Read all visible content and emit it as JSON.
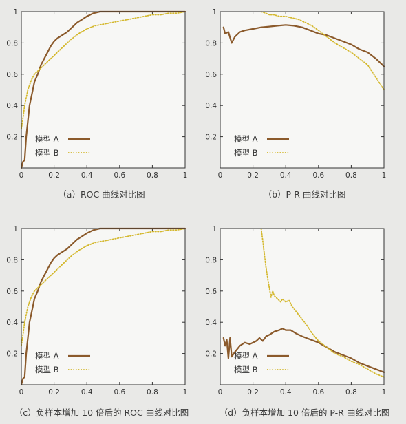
{
  "colors": {
    "model_a": "#8b5a2b",
    "model_b": "#d4b82e",
    "axis": "#333333",
    "background": "#e9e9e7",
    "plot_bg": "#f7f7f5"
  },
  "chart_data": [
    {
      "id": "a",
      "type": "line",
      "title": "（a）ROC 曲线对比图",
      "xlim": [
        0,
        1
      ],
      "ylim": [
        0,
        1
      ],
      "xticks": [
        "0",
        "0.2",
        "0.4",
        "0.6",
        "0.8",
        "1"
      ],
      "yticks": [
        "0.2",
        "0.4",
        "0.6",
        "0.8",
        "1"
      ],
      "legend_position": "bottom-left",
      "series": [
        {
          "name": "模型 A",
          "style": "solid",
          "x": [
            0,
            0.01,
            0.02,
            0.03,
            0.05,
            0.07,
            0.08,
            0.1,
            0.12,
            0.14,
            0.16,
            0.18,
            0.2,
            0.22,
            0.25,
            0.28,
            0.31,
            0.34,
            0.37,
            0.4,
            0.44,
            0.48,
            0.52,
            0.56,
            0.6,
            0.7,
            0.8,
            0.9,
            1
          ],
          "y": [
            0,
            0.04,
            0.05,
            0.2,
            0.4,
            0.5,
            0.55,
            0.6,
            0.66,
            0.7,
            0.74,
            0.78,
            0.81,
            0.83,
            0.85,
            0.87,
            0.9,
            0.93,
            0.95,
            0.97,
            0.99,
            1,
            1,
            1,
            1,
            1,
            1,
            1,
            1
          ]
        },
        {
          "name": "模型 B",
          "style": "dotted",
          "x": [
            0,
            0.01,
            0.02,
            0.04,
            0.06,
            0.08,
            0.1,
            0.13,
            0.16,
            0.2,
            0.25,
            0.3,
            0.35,
            0.4,
            0.45,
            0.5,
            0.55,
            0.6,
            0.65,
            0.7,
            0.75,
            0.8,
            0.85,
            0.9,
            0.95,
            1
          ],
          "y": [
            0.25,
            0.32,
            0.4,
            0.5,
            0.56,
            0.6,
            0.62,
            0.65,
            0.68,
            0.72,
            0.77,
            0.82,
            0.86,
            0.89,
            0.91,
            0.92,
            0.93,
            0.94,
            0.95,
            0.96,
            0.97,
            0.98,
            0.98,
            0.99,
            0.99,
            1
          ]
        }
      ]
    },
    {
      "id": "b",
      "type": "line",
      "title": "（b）P-R 曲线对比图",
      "xlim": [
        0,
        1
      ],
      "ylim": [
        0,
        1
      ],
      "xticks": [
        "0",
        "0.2",
        "0.4",
        "0.6",
        "0.8",
        "1"
      ],
      "yticks": [
        "0.2",
        "0.4",
        "0.6",
        "0.8",
        "1"
      ],
      "legend_position": "bottom-left",
      "series": [
        {
          "name": "模型 A",
          "style": "solid",
          "x": [
            0.02,
            0.03,
            0.05,
            0.07,
            0.09,
            0.12,
            0.15,
            0.2,
            0.25,
            0.3,
            0.35,
            0.4,
            0.45,
            0.5,
            0.55,
            0.6,
            0.65,
            0.7,
            0.75,
            0.8,
            0.85,
            0.9,
            0.95,
            1
          ],
          "y": [
            0.9,
            0.86,
            0.87,
            0.8,
            0.84,
            0.87,
            0.88,
            0.89,
            0.9,
            0.905,
            0.91,
            0.915,
            0.91,
            0.9,
            0.88,
            0.86,
            0.85,
            0.83,
            0.81,
            0.79,
            0.76,
            0.74,
            0.7,
            0.65
          ]
        },
        {
          "name": "模型 B",
          "style": "dotted",
          "x": [
            0.25,
            0.28,
            0.3,
            0.33,
            0.36,
            0.4,
            0.44,
            0.48,
            0.52,
            0.56,
            0.6,
            0.65,
            0.7,
            0.75,
            0.8,
            0.85,
            0.9,
            0.95,
            1
          ],
          "y": [
            1,
            0.99,
            0.98,
            0.98,
            0.97,
            0.97,
            0.96,
            0.95,
            0.93,
            0.91,
            0.88,
            0.84,
            0.8,
            0.77,
            0.74,
            0.7,
            0.66,
            0.58,
            0.5
          ]
        }
      ]
    },
    {
      "id": "c",
      "type": "line",
      "title": "（c）负样本增加 10 倍后的 ROC 曲线对比图",
      "xlim": [
        0,
        1
      ],
      "ylim": [
        0,
        1
      ],
      "xticks": [
        "0",
        "0.2",
        "0.4",
        "0.6",
        "0.8",
        "1"
      ],
      "yticks": [
        "0.2",
        "0.4",
        "0.6",
        "0.8",
        "1"
      ],
      "legend_position": "bottom-left",
      "series": [
        {
          "name": "模型 A",
          "style": "solid",
          "x": [
            0,
            0.01,
            0.02,
            0.03,
            0.05,
            0.07,
            0.08,
            0.1,
            0.12,
            0.14,
            0.16,
            0.18,
            0.2,
            0.22,
            0.25,
            0.28,
            0.31,
            0.34,
            0.37,
            0.4,
            0.44,
            0.48,
            0.52,
            0.56,
            0.6,
            0.7,
            0.8,
            0.9,
            1
          ],
          "y": [
            0,
            0.04,
            0.05,
            0.2,
            0.4,
            0.5,
            0.55,
            0.6,
            0.66,
            0.7,
            0.74,
            0.78,
            0.81,
            0.83,
            0.85,
            0.87,
            0.9,
            0.93,
            0.95,
            0.97,
            0.99,
            1,
            1,
            1,
            1,
            1,
            1,
            1,
            1
          ]
        },
        {
          "name": "模型 B",
          "style": "dotted",
          "x": [
            0,
            0.01,
            0.02,
            0.04,
            0.06,
            0.08,
            0.1,
            0.13,
            0.16,
            0.2,
            0.25,
            0.3,
            0.35,
            0.4,
            0.45,
            0.5,
            0.55,
            0.6,
            0.65,
            0.7,
            0.75,
            0.8,
            0.85,
            0.9,
            0.95,
            1
          ],
          "y": [
            0.25,
            0.32,
            0.4,
            0.5,
            0.56,
            0.6,
            0.62,
            0.65,
            0.68,
            0.72,
            0.77,
            0.82,
            0.86,
            0.89,
            0.91,
            0.92,
            0.93,
            0.94,
            0.95,
            0.96,
            0.97,
            0.98,
            0.98,
            0.99,
            0.99,
            1
          ]
        }
      ]
    },
    {
      "id": "d",
      "type": "line",
      "title": "（d）负样本增加 10 倍后的 P-R 曲线对比图",
      "xlim": [
        0,
        1
      ],
      "ylim": [
        0,
        1
      ],
      "xticks": [
        "0",
        "0.2",
        "0.4",
        "0.6",
        "0.8",
        "1"
      ],
      "yticks": [
        "0.2",
        "0.4",
        "0.6",
        "0.8",
        "1"
      ],
      "legend_position": "bottom-left",
      "series": [
        {
          "name": "模型 A",
          "style": "solid",
          "x": [
            0.02,
            0.03,
            0.04,
            0.05,
            0.06,
            0.07,
            0.09,
            0.12,
            0.15,
            0.18,
            0.2,
            0.22,
            0.24,
            0.26,
            0.28,
            0.3,
            0.33,
            0.36,
            0.38,
            0.4,
            0.43,
            0.46,
            0.5,
            0.55,
            0.6,
            0.65,
            0.7,
            0.75,
            0.8,
            0.85,
            0.9,
            0.95,
            1
          ],
          "y": [
            0.3,
            0.25,
            0.29,
            0.17,
            0.3,
            0.18,
            0.21,
            0.25,
            0.27,
            0.26,
            0.27,
            0.28,
            0.3,
            0.28,
            0.31,
            0.32,
            0.34,
            0.35,
            0.36,
            0.35,
            0.35,
            0.33,
            0.31,
            0.29,
            0.27,
            0.24,
            0.21,
            0.19,
            0.17,
            0.14,
            0.12,
            0.1,
            0.08
          ]
        },
        {
          "name": "模型 B",
          "style": "dotted",
          "x": [
            0.25,
            0.26,
            0.27,
            0.28,
            0.29,
            0.3,
            0.31,
            0.32,
            0.33,
            0.35,
            0.37,
            0.38,
            0.4,
            0.42,
            0.44,
            0.47,
            0.5,
            0.53,
            0.56,
            0.6,
            0.65,
            0.7,
            0.75,
            0.8,
            0.85,
            0.9,
            0.95,
            1
          ],
          "y": [
            1,
            0.92,
            0.83,
            0.75,
            0.68,
            0.62,
            0.56,
            0.6,
            0.57,
            0.55,
            0.53,
            0.55,
            0.53,
            0.54,
            0.5,
            0.46,
            0.42,
            0.38,
            0.33,
            0.28,
            0.24,
            0.2,
            0.18,
            0.15,
            0.13,
            0.1,
            0.07,
            0.05
          ]
        }
      ]
    }
  ]
}
